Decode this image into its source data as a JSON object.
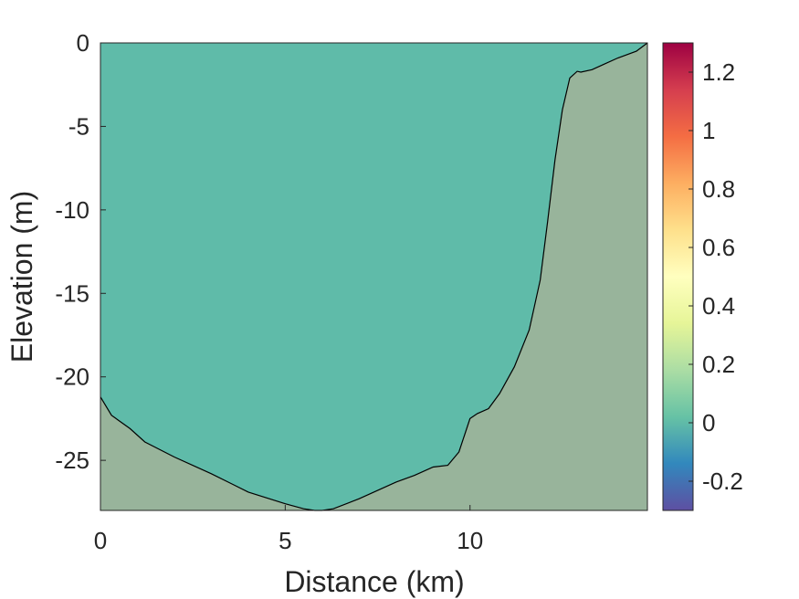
{
  "chart_data": {
    "type": "area",
    "title": "",
    "xlabel": "Distance (km)",
    "ylabel": "Elevation (m)",
    "xlim": [
      0,
      14.8
    ],
    "ylim": [
      -28,
      0
    ],
    "xticks": [
      0,
      5,
      10
    ],
    "xtick_labels": [
      "0",
      "5",
      "10"
    ],
    "yticks": [
      0,
      -5,
      -10,
      -15,
      -20,
      -25
    ],
    "ytick_labels": [
      "0",
      "-5",
      "-10",
      "-15",
      "-20",
      "-25"
    ],
    "grid": false,
    "water_surface": 0,
    "bed_profile": {
      "x": [
        0,
        0.3,
        0.8,
        1.2,
        2.0,
        3.0,
        4.0,
        5.0,
        5.5,
        5.8,
        6.0,
        6.3,
        7.0,
        8.0,
        8.5,
        9.0,
        9.4,
        9.7,
        10.0,
        10.2,
        10.5,
        10.8,
        11.2,
        11.6,
        11.9,
        12.1,
        12.3,
        12.5,
        12.7,
        12.9,
        13.0,
        13.3,
        13.6,
        14.0,
        14.5,
        14.8
      ],
      "y": [
        -21.2,
        -22.3,
        -23.1,
        -23.9,
        -24.8,
        -25.8,
        -26.9,
        -27.6,
        -27.9,
        -28.0,
        -28.0,
        -27.9,
        -27.3,
        -26.3,
        -25.9,
        -25.4,
        -25.3,
        -24.5,
        -22.5,
        -22.2,
        -21.9,
        -21.0,
        -19.4,
        -17.2,
        -14.2,
        -10.7,
        -7.0,
        -4.0,
        -2.1,
        -1.7,
        -1.75,
        -1.6,
        -1.3,
        -0.9,
        -0.5,
        0.0
      ]
    },
    "colors": {
      "water": "#5fbba9",
      "bed": "#98b49b",
      "outline": "#000000"
    },
    "colorbar": {
      "range": [
        -0.3,
        1.3
      ],
      "ticks": [
        1.2,
        1,
        0.8,
        0.6,
        0.4,
        0.2,
        0,
        -0.2
      ],
      "tick_labels": [
        "1.2",
        "1",
        "0.8",
        "0.6",
        "0.4",
        "0.2",
        "0",
        "-0.2"
      ],
      "colormap": "spectral",
      "stops": [
        "#5e4fa2",
        "#3288bd",
        "#66c2a5",
        "#abdda4",
        "#e6f598",
        "#ffffbf",
        "#fee08b",
        "#fdae61",
        "#f46d43",
        "#d53e4f",
        "#9e0142"
      ]
    }
  }
}
